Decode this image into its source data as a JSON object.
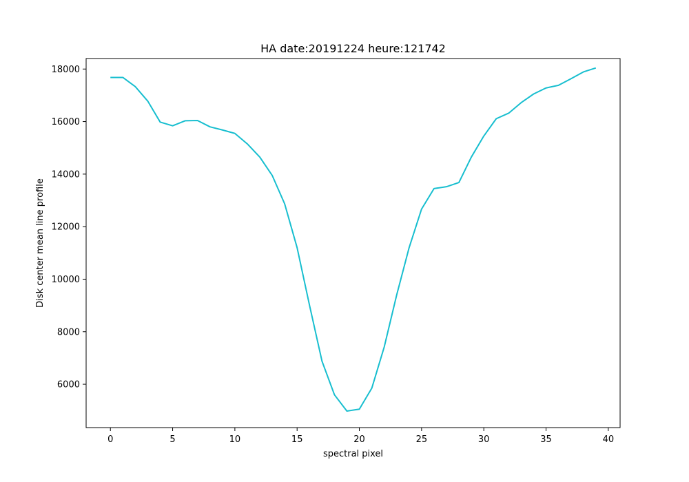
{
  "chart_data": {
    "type": "line",
    "title": "HA date:20191224 heure:121742",
    "xlabel": "spectral pixel",
    "ylabel": "Disk center mean line profile",
    "xlim": [
      -1.95,
      40.95
    ],
    "ylim": [
      4350,
      18400
    ],
    "xticks": [
      0,
      5,
      10,
      15,
      20,
      25,
      30,
      35,
      40
    ],
    "yticks": [
      6000,
      8000,
      10000,
      12000,
      14000,
      16000,
      18000
    ],
    "grid": false,
    "series": [
      {
        "color": "#17becf",
        "x": [
          0,
          1,
          2,
          3,
          4,
          5,
          6,
          7,
          8,
          9,
          10,
          11,
          12,
          13,
          14,
          15,
          16,
          17,
          18,
          19,
          20,
          21,
          22,
          23,
          24,
          25,
          26,
          27,
          28,
          29,
          30,
          31,
          32,
          33,
          34,
          35,
          36,
          37,
          38,
          39
        ],
        "values": [
          17680,
          17680,
          17330,
          16780,
          15980,
          15840,
          16030,
          16040,
          15800,
          15680,
          15550,
          15150,
          14650,
          13950,
          12870,
          11200,
          9000,
          6880,
          5600,
          4980,
          5050,
          5850,
          7420,
          9400,
          11200,
          12670,
          13450,
          13520,
          13680,
          14650,
          15450,
          16110,
          16320,
          16720,
          17050,
          17280,
          17380,
          17630,
          17890,
          18040
        ]
      }
    ]
  }
}
